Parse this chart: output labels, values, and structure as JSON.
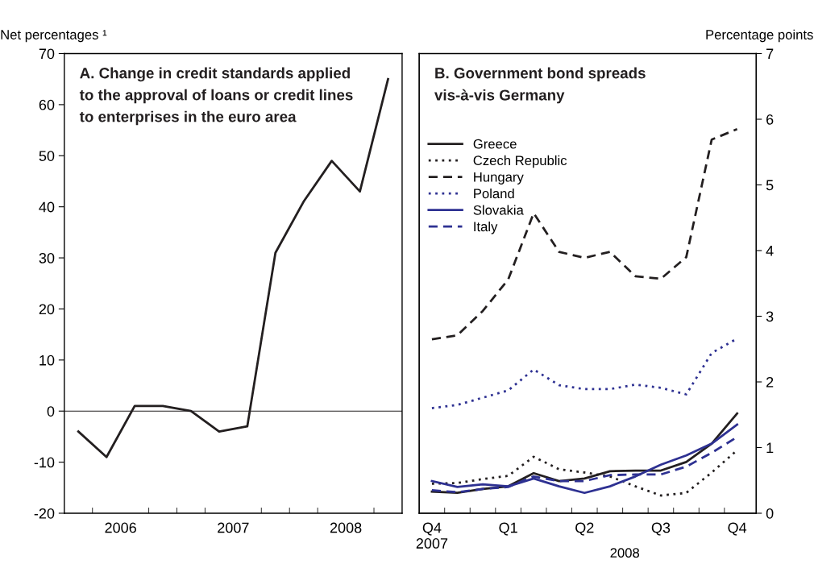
{
  "chart_data": [
    {
      "type": "line",
      "title": "A. Change in credit standards applied\nto the approval of loans or credit lines\nto enterprises in the euro area",
      "ylabel": "Net percentages ¹",
      "x": [
        2006.125,
        2006.375,
        2006.625,
        2006.875,
        2007.125,
        2007.375,
        2007.625,
        2007.875,
        2008.125,
        2008.375,
        2008.625,
        2008.875
      ],
      "series": [
        {
          "color": "#231f20",
          "values": [
            -4,
            -9,
            1,
            1,
            0,
            -4,
            -3,
            31,
            41,
            49,
            43,
            65
          ]
        }
      ],
      "xlim": [
        2006,
        2009
      ],
      "xticks": [
        {
          "value": 2006.25,
          "label": null
        },
        {
          "value": 2006.5,
          "label": "2006"
        },
        {
          "value": 2006.75,
          "label": null
        },
        {
          "value": 2007,
          "label": null
        },
        {
          "value": 2007.25,
          "label": null
        },
        {
          "value": 2007.5,
          "label": "2007"
        },
        {
          "value": 2007.75,
          "label": null
        },
        {
          "value": 2008,
          "label": null
        },
        {
          "value": 2008.25,
          "label": null
        },
        {
          "value": 2008.5,
          "label": "2008"
        },
        {
          "value": 2008.75,
          "label": null
        }
      ],
      "ylim": [
        -20,
        70
      ],
      "yticks": [
        -20,
        -10,
        0,
        10,
        20,
        30,
        40,
        50,
        60,
        70
      ],
      "ref_lines": [
        {
          "axis": "y",
          "value": 0,
          "label": null,
          "color": "#231f20"
        }
      ],
      "grid": false,
      "marker": "none",
      "line_style": "solid"
    },
    {
      "type": "line",
      "title": "B. Government bond spreads\nvis-à-vis Germany",
      "y2label": "Percentage points",
      "xlabel": "2008",
      "categories": [
        "Q4\n2007",
        null,
        null,
        "Q1",
        null,
        null,
        "Q2",
        null,
        null,
        "Q3",
        null,
        null,
        "Q4"
      ],
      "series": [
        {
          "name": "Greece",
          "color": "#231f20",
          "line_style": "solid",
          "axis": "y2",
          "values": [
            0.33,
            0.31,
            0.37,
            0.41,
            0.61,
            0.49,
            0.53,
            0.64,
            0.65,
            0.65,
            0.78,
            1.06,
            1.52
          ]
        },
        {
          "name": "Czech Republic",
          "color": "#231f20",
          "line_style": "dotted",
          "axis": "y2",
          "values": [
            0.45,
            0.46,
            0.52,
            0.57,
            0.86,
            0.67,
            0.62,
            0.56,
            0.41,
            0.27,
            0.31,
            0.62,
            0.96
          ]
        },
        {
          "name": "Hungary",
          "color": "#231f20",
          "line_style": "dashed",
          "axis": "y2",
          "values": [
            2.65,
            2.71,
            3.08,
            3.56,
            4.57,
            3.98,
            3.89,
            3.98,
            3.61,
            3.57,
            3.9,
            5.69,
            5.85
          ]
        },
        {
          "name": "Poland",
          "color": "#2e3192",
          "line_style": "dotted",
          "axis": "y2",
          "values": [
            1.6,
            1.65,
            1.76,
            1.87,
            2.19,
            1.95,
            1.89,
            1.89,
            1.96,
            1.91,
            1.81,
            2.44,
            2.66
          ]
        },
        {
          "name": "Slovakia",
          "color": "#2e3192",
          "line_style": "solid",
          "axis": "y2",
          "values": [
            0.49,
            0.4,
            0.44,
            0.41,
            0.53,
            0.41,
            0.31,
            0.41,
            0.56,
            0.74,
            0.88,
            1.06,
            1.35
          ]
        },
        {
          "name": "Italy",
          "color": "#2e3192",
          "line_style": "dashed",
          "axis": "y2",
          "values": [
            0.35,
            0.32,
            0.37,
            0.4,
            0.56,
            0.49,
            0.49,
            0.58,
            0.59,
            0.59,
            0.71,
            0.92,
            1.16
          ]
        }
      ],
      "y2lim": [
        0,
        7
      ],
      "y2ticks": [
        0,
        1,
        2,
        3,
        4,
        5,
        6,
        7
      ],
      "grid": false,
      "legend": "top left",
      "marker": "none"
    }
  ]
}
